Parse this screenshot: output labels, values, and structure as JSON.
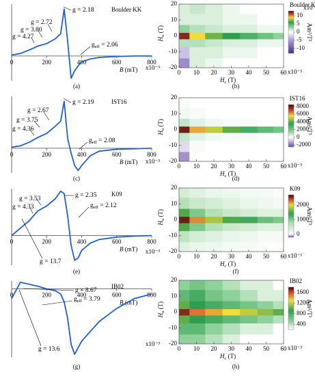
{
  "chart_data": [
    {
      "type": "line",
      "panel": "(a)",
      "sample": "Boulder KK",
      "color": "#1f5fd6",
      "xlabel": {
        "text": "B",
        "tail": " (mT)"
      },
      "x": [
        0,
        50,
        100,
        150,
        200,
        250,
        280,
        300,
        320,
        340,
        360,
        380,
        400,
        450,
        500,
        600,
        700,
        800
      ],
      "values": [
        0.02,
        0.05,
        0.12,
        0.2,
        0.25,
        0.35,
        0.45,
        0.95,
        0.3,
        -0.45,
        -0.3,
        -0.2,
        -0.12,
        -0.06,
        -0.03,
        -0.01,
        0,
        0
      ],
      "xlim": [
        0,
        800
      ],
      "xticks": [
        0,
        200,
        400,
        600,
        800
      ],
      "ylim": [
        -0.5,
        1.05
      ],
      "annotations": [
        {
          "text": "g = 2.72"
        },
        {
          "text": "g = 3.80"
        },
        {
          "text": "g = 4.27"
        },
        {
          "text": "g = 2.18"
        },
        {
          "text": "g",
          "sub": "eff",
          "tail": " = 2.06"
        }
      ]
    },
    {
      "type": "heatmap",
      "panel": "(b)",
      "sample": "Boulder KK",
      "xlabel": {
        "text": "H",
        "sub": "c",
        "tail": " (T)"
      },
      "ylabel": {
        "text": "H",
        "sub": "u",
        "tail": " (T)"
      },
      "scale": "x10⁻³",
      "zscale": "x10⁻³",
      "zlabel": "Am²/T²",
      "xlim": [
        0,
        60
      ],
      "xticks": [
        0,
        10,
        20,
        30,
        40,
        50,
        60
      ],
      "ylim": [
        -20,
        20
      ],
      "yticks": [
        -20,
        -10,
        0,
        10,
        20
      ],
      "hc": [
        2,
        10,
        20,
        30,
        40,
        50,
        58
      ],
      "hu": [
        -18,
        -10,
        -4,
        0,
        4,
        10,
        18
      ],
      "z": [
        [
          -6,
          1,
          0.5,
          0,
          0,
          0,
          0
        ],
        [
          -3,
          1,
          1,
          0.5,
          0.5,
          0,
          0
        ],
        [
          2,
          2,
          1.5,
          1,
          1,
          0.5,
          0.5
        ],
        [
          12,
          9,
          7,
          6,
          5,
          4,
          3
        ],
        [
          3,
          2,
          1.5,
          1,
          1,
          0.5,
          0.5
        ],
        [
          1,
          1,
          1,
          0.5,
          0.5,
          0,
          0
        ],
        [
          1,
          1.5,
          1,
          0.5,
          0,
          0,
          0
        ]
      ],
      "zlim": [
        -13,
        13
      ],
      "zticks": [
        -10,
        -5,
        0,
        5,
        10
      ],
      "colorscale": [
        [
          -13,
          "#4a2d8a"
        ],
        [
          -5,
          "#a99bd6"
        ],
        [
          0,
          "#ffffff"
        ],
        [
          3,
          "#8fd19a"
        ],
        [
          6,
          "#2f9e4f"
        ],
        [
          9,
          "#f0dc3c"
        ],
        [
          11,
          "#d6402c"
        ],
        [
          13,
          "#3a0d0d"
        ]
      ]
    },
    {
      "type": "line",
      "panel": "(c)",
      "sample": "IST16",
      "color": "#1f5fd6",
      "xlabel": {
        "text": "B",
        "tail": " (mT)"
      },
      "x": [
        0,
        50,
        100,
        150,
        200,
        250,
        280,
        300,
        320,
        340,
        360,
        380,
        400,
        450,
        500,
        600,
        700,
        800
      ],
      "values": [
        0.02,
        0.05,
        0.12,
        0.22,
        0.3,
        0.45,
        0.55,
        0.95,
        0.2,
        -0.1,
        -0.35,
        -0.45,
        -0.35,
        -0.15,
        -0.06,
        -0.02,
        -0.01,
        0
      ],
      "xlim": [
        0,
        800
      ],
      "xticks": [
        0,
        200,
        400,
        600,
        800
      ],
      "ylim": [
        -0.5,
        1.05
      ],
      "annotations": [
        {
          "text": "g = 2.67"
        },
        {
          "text": "g = 3.75"
        },
        {
          "text": "g = 4.36"
        },
        {
          "text": "g = 2.19"
        },
        {
          "text": "g",
          "sub": "eff",
          "tail": " = 2.08"
        }
      ]
    },
    {
      "type": "heatmap",
      "panel": "(d)",
      "sample": "IST16",
      "xlabel": {
        "text": "H",
        "sub": "c",
        "tail": " (T)"
      },
      "ylabel": {
        "text": "H",
        "sub": "u",
        "tail": " (T)"
      },
      "scale": "x10⁻³",
      "zlabel": "Am²/T²",
      "xlim": [
        0,
        60
      ],
      "xticks": [
        0,
        10,
        20,
        30,
        40,
        50,
        60
      ],
      "ylim": [
        -20,
        20
      ],
      "yticks": [
        -20,
        -10,
        0,
        10,
        20
      ],
      "hc": [
        2,
        10,
        20,
        30,
        40,
        50,
        58
      ],
      "hu": [
        -18,
        -10,
        -4,
        0,
        4,
        10,
        18
      ],
      "z": [
        [
          -1500,
          0,
          0,
          0,
          0,
          0,
          0
        ],
        [
          -500,
          100,
          0,
          0,
          0,
          0,
          0
        ],
        [
          800,
          400,
          200,
          100,
          100,
          0,
          0
        ],
        [
          8000,
          6000,
          5000,
          4000,
          3000,
          2500,
          2000
        ],
        [
          800,
          400,
          200,
          100,
          100,
          0,
          0
        ],
        [
          200,
          100,
          0,
          0,
          0,
          0,
          0
        ],
        [
          100,
          0,
          0,
          0,
          0,
          0,
          0
        ]
      ],
      "zlim": [
        -2500,
        8500
      ],
      "zticks": [
        -2000,
        0,
        2000,
        4000,
        6000,
        8000
      ],
      "colorscale": [
        [
          -2500,
          "#6a4aa8"
        ],
        [
          0,
          "#ffffff"
        ],
        [
          1500,
          "#8fd19a"
        ],
        [
          3500,
          "#2f9e4f"
        ],
        [
          5500,
          "#f0dc3c"
        ],
        [
          7000,
          "#d6402c"
        ],
        [
          8500,
          "#3a0d0d"
        ]
      ]
    },
    {
      "type": "line",
      "panel": "(e)",
      "sample": "K09",
      "color": "#1f5fd6",
      "xlabel": {
        "text": "B",
        "tail": " (mT)"
      },
      "x": [
        0,
        50,
        100,
        150,
        200,
        250,
        280,
        300,
        320,
        340,
        360,
        380,
        400,
        450,
        500,
        600,
        700,
        800
      ],
      "values": [
        0,
        0.15,
        0.3,
        0.5,
        0.6,
        0.75,
        0.9,
        0.85,
        0.4,
        -0.2,
        -0.5,
        -0.45,
        -0.3,
        -0.15,
        -0.08,
        -0.03,
        -0.01,
        0
      ],
      "xlim": [
        0,
        800
      ],
      "xticks": [
        0,
        200,
        400,
        600,
        800
      ],
      "ylim": [
        -0.6,
        0.95
      ],
      "annotations": [
        {
          "text": "g = 3.53"
        },
        {
          "text": "g = 4.33"
        },
        {
          "text": "g = 2.35"
        },
        {
          "text": "g",
          "sub": "eff",
          "tail": " = 2.12"
        },
        {
          "text": "g = 13.7"
        }
      ]
    },
    {
      "type": "heatmap",
      "panel": "(f)",
      "sample": "K09",
      "xlabel": {
        "text": "H",
        "sub": "c",
        "tail": " (T)"
      },
      "ylabel": {
        "text": "H",
        "sub": "u",
        "tail": " (T)"
      },
      "scale": "x10⁻³",
      "zlabel": "Am²/T²",
      "xlim": [
        0,
        60
      ],
      "xticks": [
        0,
        10,
        20,
        30,
        40,
        50,
        60
      ],
      "ylim": [
        -20,
        20
      ],
      "yticks": [
        -20,
        -10,
        0,
        10,
        20
      ],
      "hc": [
        2,
        10,
        20,
        30,
        40,
        50,
        58
      ],
      "hu": [
        -18,
        -10,
        -4,
        0,
        4,
        10,
        18
      ],
      "z": [
        [
          300,
          200,
          150,
          100,
          100,
          50,
          50
        ],
        [
          600,
          400,
          300,
          200,
          150,
          100,
          100
        ],
        [
          1500,
          1000,
          700,
          500,
          400,
          300,
          300
        ],
        [
          2600,
          2200,
          1800,
          1500,
          1300,
          1100,
          1000
        ],
        [
          1500,
          1000,
          700,
          500,
          400,
          300,
          300
        ],
        [
          700,
          500,
          400,
          300,
          200,
          150,
          100
        ],
        [
          400,
          300,
          200,
          150,
          100,
          100,
          50
        ]
      ],
      "zlim": [
        -200,
        2700
      ],
      "zticks": [
        0,
        1000,
        2000
      ],
      "colorscale": [
        [
          -200,
          "#6a4aa8"
        ],
        [
          0,
          "#ffffff"
        ],
        [
          800,
          "#a8dcaa"
        ],
        [
          1400,
          "#2f9e4f"
        ],
        [
          2000,
          "#e9d83e"
        ],
        [
          2400,
          "#c8402c"
        ],
        [
          2700,
          "#3a0d0d"
        ]
      ]
    },
    {
      "type": "line",
      "panel": "(g)",
      "sample": "IB02",
      "color": "#1f5fd6",
      "xlabel": {
        "text": "B",
        "tail": " (mT)"
      },
      "x": [
        0,
        50,
        100,
        150,
        200,
        250,
        280,
        300,
        320,
        340,
        360,
        380,
        400,
        450,
        500,
        600,
        700,
        800
      ],
      "values": [
        -0.15,
        0.1,
        0.07,
        0.04,
        0,
        -0.03,
        -0.08,
        -0.2,
        -0.45,
        -0.85,
        -1,
        -0.9,
        -0.8,
        -0.65,
        -0.5,
        -0.3,
        -0.15,
        -0.08
      ],
      "xlim": [
        0,
        800
      ],
      "xticks": [
        0,
        200,
        400,
        600,
        800
      ],
      "ylim": [
        -1.05,
        0.12
      ],
      "annotations": [
        {
          "text": "g = 8.67"
        },
        {
          "text": "g",
          "sub": "eff",
          "tail": " = 3.79"
        },
        {
          "text": "g = 13.6"
        }
      ]
    },
    {
      "type": "heatmap",
      "panel": "(h)",
      "sample": "IB02",
      "xlabel": {
        "text": "H",
        "sub": "c",
        "tail": " (T)"
      },
      "ylabel": {
        "text": "H",
        "sub": "u",
        "tail": " (T)"
      },
      "scale": "x10⁻³",
      "zlabel": "Am²/T²",
      "xlim": [
        0,
        60
      ],
      "xticks": [
        0,
        10,
        20,
        30,
        40,
        50,
        60
      ],
      "ylim": [
        -20,
        20
      ],
      "yticks": [
        -20,
        -10,
        0,
        10,
        20
      ],
      "hc": [
        2,
        10,
        20,
        30,
        40,
        50,
        58
      ],
      "hu": [
        -18,
        -10,
        -4,
        0,
        4,
        10,
        18
      ],
      "z": [
        [
          500,
          500,
          400,
          300,
          200,
          200,
          200
        ],
        [
          700,
          700,
          500,
          400,
          300,
          300,
          200
        ],
        [
          1000,
          900,
          800,
          700,
          600,
          500,
          400
        ],
        [
          1700,
          1500,
          1400,
          1300,
          1200,
          1100,
          1000
        ],
        [
          1000,
          900,
          800,
          700,
          600,
          500,
          400
        ],
        [
          700,
          800,
          600,
          500,
          400,
          300,
          300
        ],
        [
          500,
          600,
          500,
          400,
          300,
          300,
          200
        ]
      ],
      "zlim": [
        200,
        1800
      ],
      "zticks": [
        400,
        800,
        1200,
        1600
      ],
      "colorscale": [
        [
          200,
          "#ffffff"
        ],
        [
          500,
          "#8fd19a"
        ],
        [
          900,
          "#2f9e4f"
        ],
        [
          1300,
          "#f0dc3c"
        ],
        [
          1600,
          "#d6402c"
        ],
        [
          1800,
          "#3a0d0d"
        ]
      ]
    }
  ]
}
